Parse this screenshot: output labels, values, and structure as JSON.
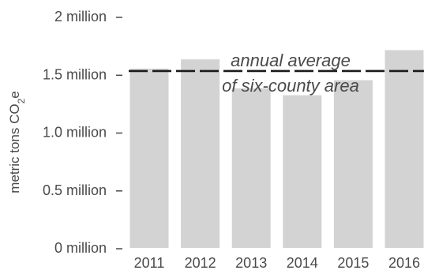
{
  "chart_data": {
    "type": "bar",
    "categories": [
      "2011",
      "2012",
      "2013",
      "2014",
      "2015",
      "2016"
    ],
    "values": [
      1550000,
      1630000,
      1380000,
      1320000,
      1450000,
      1710000
    ],
    "ylim": [
      0,
      2000000
    ],
    "yticks": [
      {
        "value": 0,
        "label": "0 million"
      },
      {
        "value": 500000,
        "label": "0.5 million"
      },
      {
        "value": 1000000,
        "label": "1.0 million"
      },
      {
        "value": 1500000,
        "label": "1.5 million"
      },
      {
        "value": 2000000,
        "label": "2 million"
      }
    ],
    "ylabel": {
      "main": "metric tons CO",
      "sub": "2",
      "end": "e"
    },
    "reference_line": {
      "value": 1530000,
      "label_line1": "annual average",
      "label_line2": "of six-county area",
      "style": "dashed"
    },
    "bar_color": "#d3d3d4",
    "line_color": "#1a1a1a",
    "text_color": "#4a4a4a",
    "grid": false,
    "legend": "none"
  }
}
